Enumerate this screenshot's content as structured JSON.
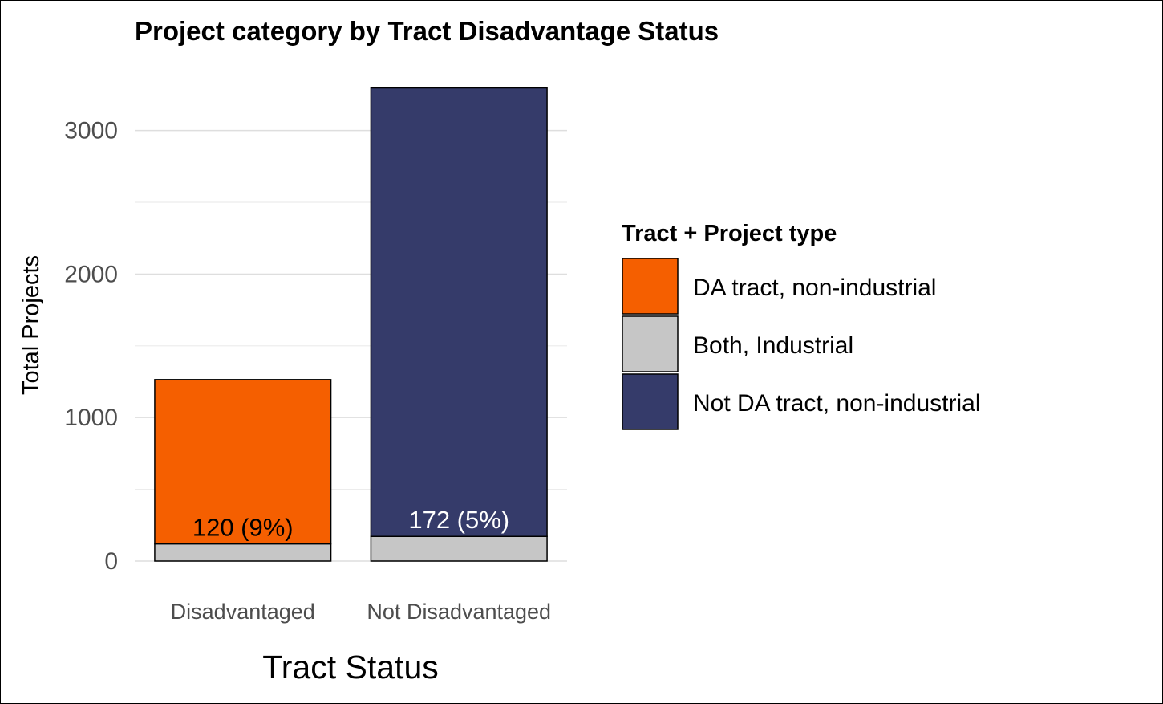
{
  "chart_data": {
    "type": "bar",
    "stacked": true,
    "title": "Project category by Tract Disadvantage Status",
    "xlabel": "Tract Status",
    "ylabel": "Total Projects",
    "categories": [
      "Disadvantaged",
      "Not Disadvantaged"
    ],
    "ylim": [
      0,
      3300
    ],
    "yticks": [
      0,
      1000,
      2000,
      3000
    ],
    "grid": true,
    "legend": {
      "title": "Tract + Project type",
      "placement": "right",
      "entries": [
        {
          "label": "DA tract, non-industrial",
          "color": "#f55f00"
        },
        {
          "label": "Both, Industrial",
          "color": "#c6c6c6"
        },
        {
          "label": "Not DA tract, non-industrial",
          "color": "#353b6a"
        }
      ]
    },
    "series": [
      {
        "name": "Both, Industrial",
        "color": "#c6c6c6",
        "values": [
          120,
          172
        ]
      },
      {
        "name": "DA tract, non-industrial",
        "color": "#f55f00",
        "values": [
          1145,
          0
        ]
      },
      {
        "name": "Not DA tract, non-industrial",
        "color": "#353b6a",
        "values": [
          0,
          3125
        ]
      }
    ],
    "annotations": [
      {
        "category": "Disadvantaged",
        "text": "120 (9%)",
        "text_color": "#000000"
      },
      {
        "category": "Not Disadvantaged",
        "text": "172 (5%)",
        "text_color": "#ffffff"
      }
    ]
  }
}
